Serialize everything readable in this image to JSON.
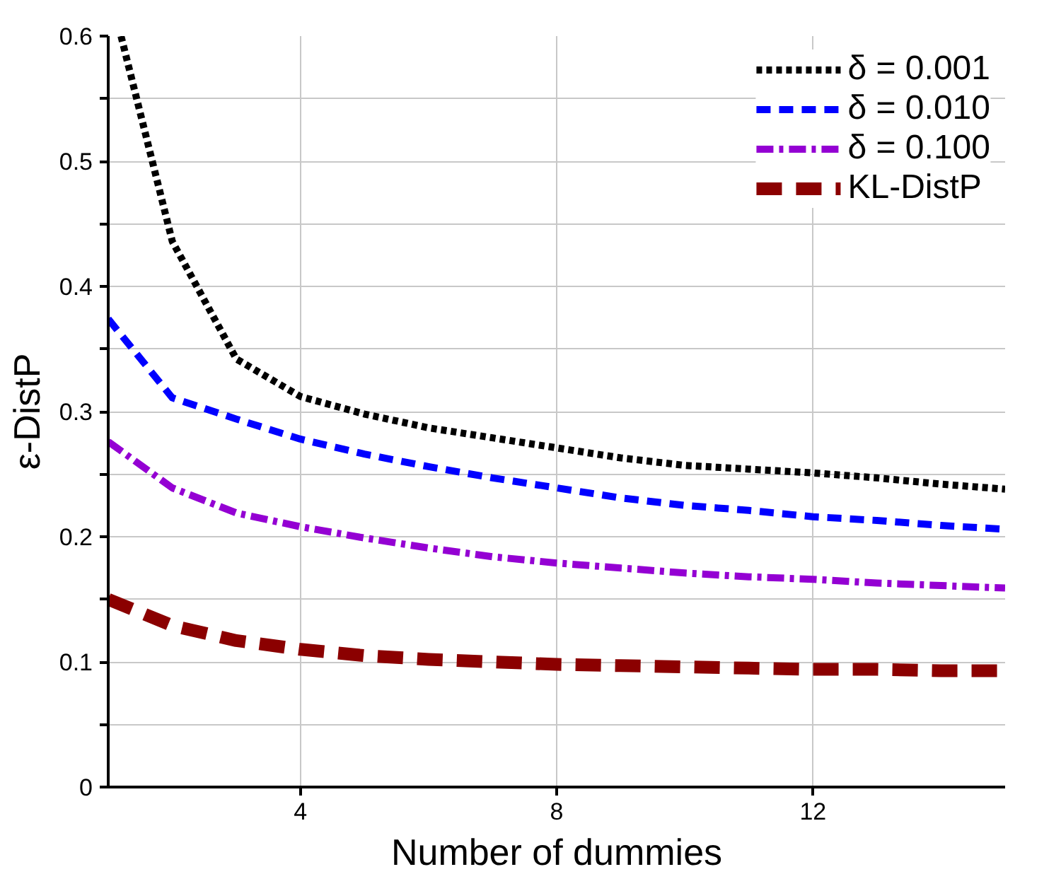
{
  "chart_data": {
    "type": "line",
    "xlabel": "Number of dummies",
    "ylabel": "ε-DistP",
    "x": [
      1,
      2,
      3,
      4,
      5,
      6,
      7,
      8,
      9,
      10,
      11,
      12,
      13,
      14,
      15
    ],
    "series": [
      {
        "name": "δ = 0.001",
        "color": "#000000",
        "line_style": "dotted",
        "x": [
          1.2,
          2,
          3,
          4,
          5,
          6,
          7,
          8,
          9,
          10,
          11,
          12,
          13,
          14,
          15
        ],
        "values": [
          0.6,
          0.436,
          0.342,
          0.312,
          0.298,
          0.287,
          0.279,
          0.271,
          0.263,
          0.257,
          0.254,
          0.251,
          0.247,
          0.242,
          0.238
        ]
      },
      {
        "name": "δ = 0.010",
        "color": "#0000ff",
        "line_style": "dashed",
        "values": [
          0.374,
          0.311,
          0.294,
          0.278,
          0.266,
          0.256,
          0.247,
          0.239,
          0.231,
          0.225,
          0.221,
          0.216,
          0.213,
          0.209,
          0.206
        ]
      },
      {
        "name": "δ = 0.100",
        "color": "#9400d3",
        "line_style": "dashdot",
        "values": [
          0.276,
          0.239,
          0.219,
          0.208,
          0.199,
          0.191,
          0.184,
          0.179,
          0.175,
          0.171,
          0.168,
          0.166,
          0.163,
          0.161,
          0.159
        ]
      },
      {
        "name": "KL-DistP",
        "color": "#8b0000",
        "line_style": "dashed",
        "values": [
          0.15,
          0.129,
          0.117,
          0.11,
          0.105,
          0.102,
          0.1,
          0.098,
          0.097,
          0.096,
          0.095,
          0.094,
          0.094,
          0.093,
          0.093
        ]
      }
    ],
    "xlim": [
      1,
      15
    ],
    "xticks": [
      4,
      8,
      12
    ],
    "ylim": [
      0,
      0.6
    ],
    "yticks": [
      0,
      {
        "value": 0.05,
        "label": null
      },
      0.1,
      {
        "value": 0.15,
        "label": null
      },
      0.2,
      {
        "value": 0.25,
        "label": null
      },
      0.3,
      {
        "value": 0.35,
        "label": null
      },
      0.4,
      {
        "value": 0.45,
        "label": null
      },
      0.5,
      {
        "value": 0.55,
        "label": null
      },
      0.6
    ],
    "grid": true,
    "legend": "top right"
  }
}
